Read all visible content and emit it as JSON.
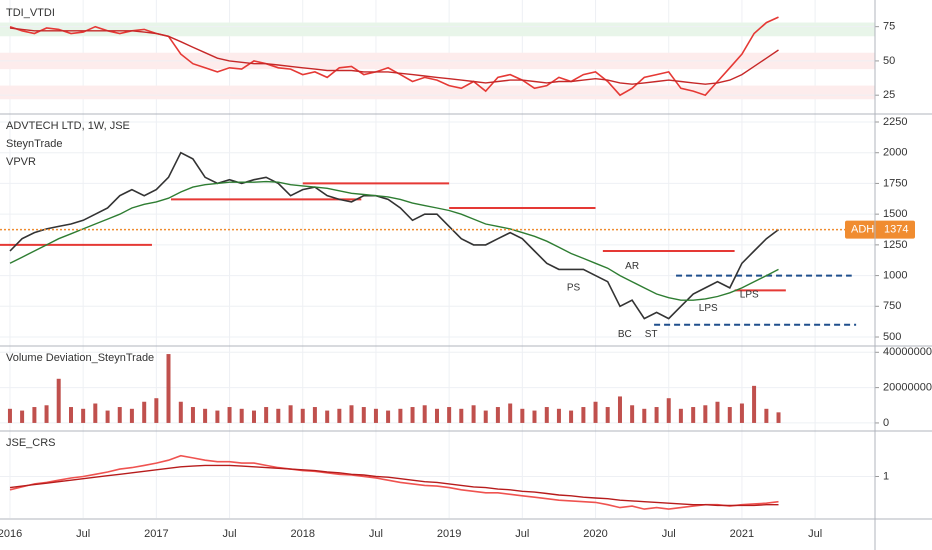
{
  "chart_data": [
    {
      "type": "line",
      "title": "TDI_VTDI",
      "x": [
        2016.0,
        2016.083,
        2016.167,
        2016.25,
        2016.333,
        2016.417,
        2016.5,
        2016.583,
        2016.667,
        2016.75,
        2016.833,
        2016.917,
        2017.0,
        2017.083,
        2017.167,
        2017.25,
        2017.333,
        2017.417,
        2017.5,
        2017.583,
        2017.667,
        2017.75,
        2017.833,
        2017.917,
        2018.0,
        2018.083,
        2018.167,
        2018.25,
        2018.333,
        2018.417,
        2018.5,
        2018.583,
        2018.667,
        2018.75,
        2018.833,
        2018.917,
        2019.0,
        2019.083,
        2019.167,
        2019.25,
        2019.333,
        2019.417,
        2019.5,
        2019.583,
        2019.667,
        2019.75,
        2019.833,
        2019.917,
        2020.0,
        2020.083,
        2020.167,
        2020.25,
        2020.333,
        2020.417,
        2020.5,
        2020.583,
        2020.667,
        2020.75,
        2020.833,
        2020.917,
        2021.0,
        2021.083,
        2021.167,
        2021.25
      ],
      "series": [
        {
          "color": "#e53935",
          "values": [
            75,
            72,
            70,
            74,
            73,
            70,
            71,
            75,
            72,
            70,
            72,
            73,
            70,
            68,
            55,
            48,
            45,
            42,
            45,
            44,
            50,
            48,
            45,
            44,
            40,
            42,
            38,
            45,
            46,
            40,
            42,
            45,
            40,
            35,
            38,
            36,
            32,
            30,
            35,
            28,
            38,
            40,
            36,
            30,
            32,
            38,
            35,
            40,
            42,
            35,
            25,
            30,
            38,
            40,
            42,
            30,
            28,
            25,
            35,
            45,
            55,
            70,
            78,
            82
          ]
        },
        {
          "color": "#c62828",
          "values": [
            74,
            73,
            72,
            72,
            72,
            72,
            72,
            72,
            72,
            72,
            72,
            71,
            70,
            68,
            64,
            60,
            56,
            52,
            50,
            49,
            48,
            48,
            47,
            46,
            45,
            44,
            43,
            43,
            43,
            42,
            42,
            42,
            41,
            40,
            39,
            38,
            37,
            36,
            35,
            34,
            35,
            36,
            36,
            35,
            34,
            35,
            35,
            36,
            37,
            36,
            34,
            33,
            34,
            35,
            36,
            35,
            34,
            33,
            34,
            36,
            40,
            46,
            52,
            58
          ]
        }
      ],
      "bands": [
        {
          "from": 68,
          "to": 78,
          "color": "#e8f5e9"
        },
        {
          "from": 44,
          "to": 56,
          "color": "#fdecec"
        },
        {
          "from": 22,
          "to": 32,
          "color": "#fdecec"
        }
      ],
      "xlim": [
        2015.932,
        2021.909
      ],
      "ylim": [
        12,
        93
      ],
      "yticks": [
        75,
        50,
        25
      ]
    },
    {
      "type": "line",
      "title": "ADVTECH LTD, 1W, JSE",
      "indicators": [
        "SteynTrade",
        "VPVR"
      ],
      "x": [
        2016.0,
        2016.083,
        2016.167,
        2016.25,
        2016.333,
        2016.417,
        2016.5,
        2016.583,
        2016.667,
        2016.75,
        2016.833,
        2016.917,
        2017.0,
        2017.083,
        2017.167,
        2017.25,
        2017.333,
        2017.417,
        2017.5,
        2017.583,
        2017.667,
        2017.75,
        2017.833,
        2017.917,
        2018.0,
        2018.083,
        2018.167,
        2018.25,
        2018.333,
        2018.417,
        2018.5,
        2018.583,
        2018.667,
        2018.75,
        2018.833,
        2018.917,
        2019.0,
        2019.083,
        2019.167,
        2019.25,
        2019.333,
        2019.417,
        2019.5,
        2019.583,
        2019.667,
        2019.75,
        2019.833,
        2019.917,
        2020.0,
        2020.083,
        2020.167,
        2020.25,
        2020.333,
        2020.417,
        2020.5,
        2020.583,
        2020.667,
        2020.75,
        2020.833,
        2020.917,
        2021.0,
        2021.083,
        2021.167,
        2021.25
      ],
      "series": [
        {
          "color": "#333333",
          "values": [
            1200,
            1300,
            1350,
            1380,
            1400,
            1420,
            1450,
            1500,
            1550,
            1650,
            1700,
            1650,
            1700,
            1800,
            2000,
            1950,
            1800,
            1750,
            1780,
            1750,
            1780,
            1800,
            1750,
            1650,
            1700,
            1720,
            1650,
            1620,
            1600,
            1650,
            1650,
            1620,
            1550,
            1450,
            1500,
            1500,
            1400,
            1300,
            1250,
            1250,
            1300,
            1350,
            1300,
            1200,
            1100,
            1050,
            1050,
            1050,
            1000,
            950,
            750,
            800,
            650,
            700,
            650,
            750,
            850,
            900,
            950,
            900,
            1100,
            1200,
            1300,
            1374
          ]
        },
        {
          "color": "#2e7d32",
          "values": [
            1100,
            1150,
            1200,
            1250,
            1300,
            1340,
            1380,
            1420,
            1460,
            1500,
            1550,
            1580,
            1600,
            1630,
            1680,
            1720,
            1740,
            1750,
            1760,
            1760,
            1760,
            1765,
            1760,
            1740,
            1730,
            1720,
            1710,
            1690,
            1670,
            1660,
            1650,
            1640,
            1620,
            1590,
            1570,
            1550,
            1530,
            1500,
            1460,
            1420,
            1400,
            1380,
            1350,
            1320,
            1280,
            1230,
            1180,
            1140,
            1100,
            1060,
            1000,
            950,
            900,
            850,
            820,
            800,
            800,
            810,
            830,
            860,
            900,
            950,
            1000,
            1050
          ]
        }
      ],
      "levels": [
        {
          "value": 1250,
          "from": 2015.932,
          "to": 2016.97,
          "color": "#e53935"
        },
        {
          "value": 1620,
          "from": 2017.1,
          "to": 2018.4,
          "color": "#e53935"
        },
        {
          "value": 1750,
          "from": 2018.0,
          "to": 2019.0,
          "color": "#e53935"
        },
        {
          "value": 1550,
          "from": 2019.0,
          "to": 2020.0,
          "color": "#e53935"
        },
        {
          "value": 1200,
          "from": 2020.05,
          "to": 2020.95,
          "color": "#e53935"
        },
        {
          "value": 880,
          "from": 2020.95,
          "to": 2021.3,
          "color": "#e53935"
        },
        {
          "value": 1000,
          "from": 2020.55,
          "to": 2021.75,
          "color": "#1e4e8c",
          "dash": true
        },
        {
          "value": 600,
          "from": 2020.4,
          "to": 2021.78,
          "color": "#1e4e8c",
          "dash": true
        }
      ],
      "annotations": [
        {
          "text": "PS",
          "x": 2019.85,
          "y": 900
        },
        {
          "text": "AR",
          "x": 2020.25,
          "y": 1075
        },
        {
          "text": "BC",
          "x": 2020.2,
          "y": 520
        },
        {
          "text": "ST",
          "x": 2020.38,
          "y": 520
        },
        {
          "text": "LPS",
          "x": 2020.77,
          "y": 735
        },
        {
          "text": "LPS",
          "x": 2021.05,
          "y": 845
        }
      ],
      "price_label": "ADH",
      "last_price": 1374,
      "last_color": "#f08c30",
      "xlim": [
        2015.932,
        2021.909
      ],
      "ylim": [
        435,
        2307
      ],
      "yticks": [
        2250,
        2000,
        1750,
        1500,
        1250,
        1000,
        750,
        500
      ]
    },
    {
      "type": "bar",
      "title": "Volume Deviation_SteynTrade",
      "color": "#c0504d",
      "x": [
        2016.0,
        2016.083,
        2016.167,
        2016.25,
        2016.333,
        2016.417,
        2016.5,
        2016.583,
        2016.667,
        2016.75,
        2016.833,
        2016.917,
        2017.0,
        2017.083,
        2017.167,
        2017.25,
        2017.333,
        2017.417,
        2017.5,
        2017.583,
        2017.667,
        2017.75,
        2017.833,
        2017.917,
        2018.0,
        2018.083,
        2018.167,
        2018.25,
        2018.333,
        2018.417,
        2018.5,
        2018.583,
        2018.667,
        2018.75,
        2018.833,
        2018.917,
        2019.0,
        2019.083,
        2019.167,
        2019.25,
        2019.333,
        2019.417,
        2019.5,
        2019.583,
        2019.667,
        2019.75,
        2019.833,
        2019.917,
        2020.0,
        2020.083,
        2020.167,
        2020.25,
        2020.333,
        2020.417,
        2020.5,
        2020.583,
        2020.667,
        2020.75,
        2020.833,
        2020.917,
        2021.0,
        2021.083,
        2021.167,
        2021.25
      ],
      "values": [
        8000000,
        7000000,
        9000000,
        10000000,
        25000000,
        9000000,
        8000000,
        11000000,
        7000000,
        9000000,
        8000000,
        12000000,
        14000000,
        39000000,
        12000000,
        9000000,
        8000000,
        7000000,
        9000000,
        8000000,
        7000000,
        9000000,
        8000000,
        10000000,
        8000000,
        9000000,
        7000000,
        8000000,
        10000000,
        9000000,
        8000000,
        7000000,
        8000000,
        9000000,
        10000000,
        8000000,
        9000000,
        8000000,
        10000000,
        7000000,
        9000000,
        11000000,
        8000000,
        7000000,
        9000000,
        8000000,
        7000000,
        9000000,
        12000000,
        9000000,
        15000000,
        10000000,
        8000000,
        9000000,
        14000000,
        8000000,
        9000000,
        10000000,
        12000000,
        9000000,
        11000000,
        21000000,
        8000000,
        6000000
      ],
      "xlim": [
        2015.932,
        2021.909
      ],
      "ylim": [
        -4000000,
        43000000
      ],
      "yticks": [
        40000000,
        20000000,
        0
      ]
    },
    {
      "type": "line",
      "title": "JSE_CRS",
      "x": [
        2016.0,
        2016.083,
        2016.167,
        2016.25,
        2016.333,
        2016.417,
        2016.5,
        2016.583,
        2016.667,
        2016.75,
        2016.833,
        2016.917,
        2017.0,
        2017.083,
        2017.167,
        2017.25,
        2017.333,
        2017.417,
        2017.5,
        2017.583,
        2017.667,
        2017.75,
        2017.833,
        2017.917,
        2018.0,
        2018.083,
        2018.167,
        2018.25,
        2018.333,
        2018.417,
        2018.5,
        2018.583,
        2018.667,
        2018.75,
        2018.833,
        2018.917,
        2019.0,
        2019.083,
        2019.167,
        2019.25,
        2019.333,
        2019.417,
        2019.5,
        2019.583,
        2019.667,
        2019.75,
        2019.833,
        2019.917,
        2020.0,
        2020.083,
        2020.167,
        2020.25,
        2020.333,
        2020.417,
        2020.5,
        2020.583,
        2020.667,
        2020.75,
        2020.833,
        2020.917,
        2021.0,
        2021.083,
        2021.167,
        2021.25
      ],
      "series": [
        {
          "color": "#ef5350",
          "values": [
            0.82,
            0.86,
            0.9,
            0.92,
            0.95,
            0.98,
            1.0,
            1.03,
            1.06,
            1.1,
            1.12,
            1.15,
            1.18,
            1.22,
            1.28,
            1.25,
            1.22,
            1.2,
            1.2,
            1.18,
            1.18,
            1.15,
            1.12,
            1.1,
            1.08,
            1.07,
            1.05,
            1.03,
            1.02,
            1.0,
            0.98,
            0.95,
            0.92,
            0.9,
            0.88,
            0.87,
            0.85,
            0.82,
            0.8,
            0.78,
            0.78,
            0.76,
            0.74,
            0.72,
            0.7,
            0.68,
            0.67,
            0.66,
            0.65,
            0.62,
            0.58,
            0.6,
            0.56,
            0.58,
            0.56,
            0.58,
            0.6,
            0.62,
            0.62,
            0.6,
            0.62,
            0.63,
            0.64,
            0.66
          ]
        },
        {
          "color": "#b71c1c",
          "values": [
            0.85,
            0.87,
            0.89,
            0.91,
            0.93,
            0.95,
            0.97,
            0.99,
            1.01,
            1.03,
            1.05,
            1.07,
            1.09,
            1.11,
            1.13,
            1.14,
            1.15,
            1.15,
            1.15,
            1.14,
            1.13,
            1.12,
            1.11,
            1.1,
            1.09,
            1.08,
            1.06,
            1.05,
            1.03,
            1.02,
            1.0,
            0.99,
            0.97,
            0.95,
            0.93,
            0.92,
            0.9,
            0.88,
            0.86,
            0.85,
            0.83,
            0.82,
            0.8,
            0.79,
            0.77,
            0.75,
            0.74,
            0.72,
            0.71,
            0.7,
            0.68,
            0.67,
            0.66,
            0.65,
            0.64,
            0.63,
            0.62,
            0.62,
            0.61,
            0.61,
            0.61,
            0.61,
            0.62,
            0.62
          ]
        }
      ],
      "xlim": [
        2015.932,
        2021.909
      ],
      "ylim": [
        0.44,
        1.6
      ],
      "yticks": [
        1
      ],
      "xticks": [
        2016,
        {
          "value": 2016.5,
          "label": "Jul"
        },
        2017,
        {
          "value": 2017.5,
          "label": "Jul"
        },
        2018,
        {
          "value": 2018.5,
          "label": "Jul"
        },
        2019,
        {
          "value": 2019.5,
          "label": "Jul"
        },
        2020,
        {
          "value": 2020.5,
          "label": "Jul"
        },
        2021,
        {
          "value": 2021.5,
          "label": "Jul"
        }
      ]
    }
  ]
}
